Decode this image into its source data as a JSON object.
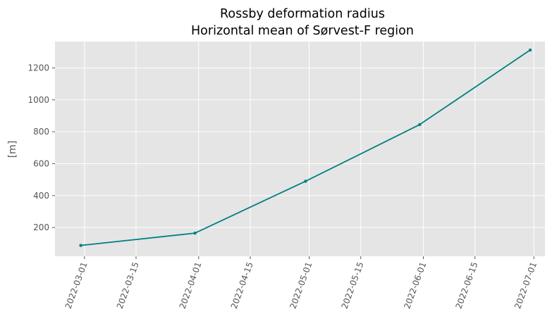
{
  "chart_data": {
    "type": "line",
    "title": "Rossby deformation radius",
    "subtitle": "Horizontal mean of Sørvest-F region",
    "xlabel": "",
    "ylabel": "[m]",
    "x_ticks": [
      "2022-03-01",
      "2022-03-15",
      "2022-04-01",
      "2022-04-15",
      "2022-05-01",
      "2022-05-15",
      "2022-06-01",
      "2022-06-15",
      "2022-07-01"
    ],
    "y_ticks": [
      200,
      400,
      600,
      800,
      1000,
      1200
    ],
    "xlim": [
      "2022-02-21",
      "2022-07-04"
    ],
    "ylim": [
      20,
      1365
    ],
    "grid": true,
    "series": [
      {
        "color": "#008080",
        "x": [
          "2022-02-28",
          "2022-03-31",
          "2022-04-30",
          "2022-05-31",
          "2022-06-30"
        ],
        "y": [
          88,
          165,
          490,
          845,
          1312
        ]
      }
    ]
  }
}
